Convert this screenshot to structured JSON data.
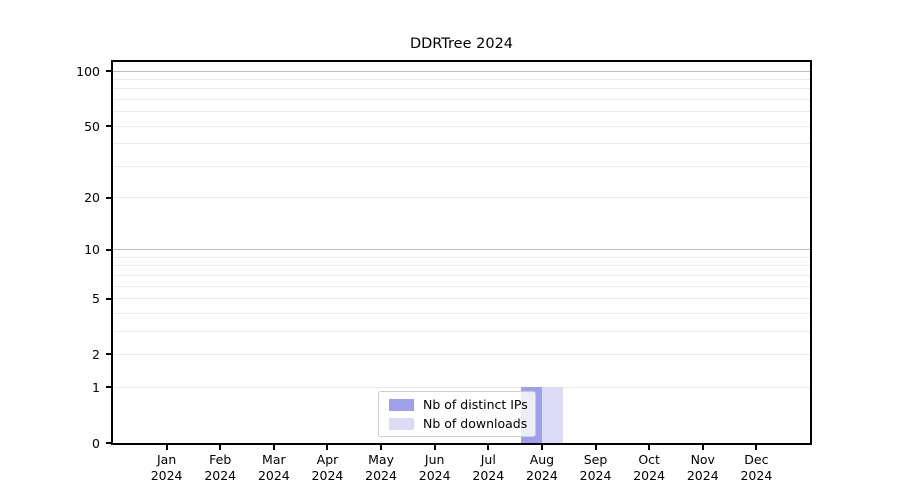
{
  "chart_data": {
    "type": "bar",
    "title": "DDRTree 2024",
    "scale": "log10(value+1)",
    "ylim": [
      0,
      100
    ],
    "grid": "horizontal",
    "categories": [
      "Jan",
      "Feb",
      "Mar",
      "Apr",
      "May",
      "Jun",
      "Jul",
      "Aug",
      "Sep",
      "Oct",
      "Nov",
      "Dec"
    ],
    "x_year": "2024",
    "yticks": [
      0,
      1,
      2,
      5,
      10,
      20,
      50,
      100
    ],
    "grid_minor_values": [
      1,
      2,
      3,
      4,
      5,
      6,
      7,
      8,
      9,
      20,
      30,
      40,
      50,
      60,
      70,
      80,
      90
    ],
    "grid_major_values": [
      10,
      100
    ],
    "series": [
      {
        "name": "Nb of distinct IPs",
        "color": "#a0a0e8",
        "values": [
          0,
          0,
          0,
          0,
          0,
          0,
          0,
          1,
          0,
          0,
          0,
          0
        ]
      },
      {
        "name": "Nb of downloads",
        "color": "#dbdbf6",
        "values": [
          0,
          0,
          0,
          0,
          0,
          0,
          0,
          1,
          0,
          0,
          0,
          0
        ]
      }
    ],
    "legend_position": "bottom-center"
  }
}
